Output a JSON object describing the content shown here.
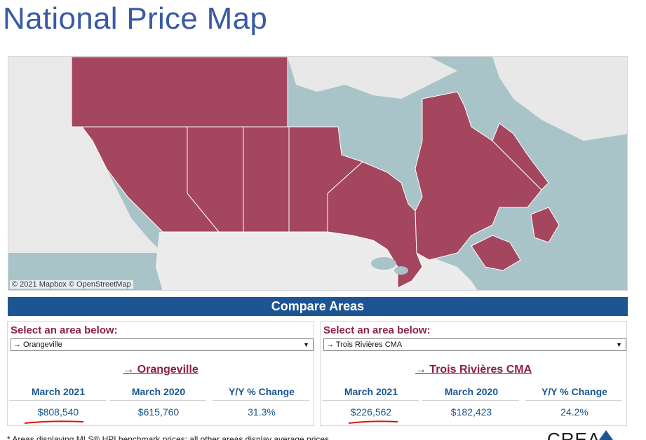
{
  "page": {
    "title": "National Price Map"
  },
  "map": {
    "attribution": "© 2021 Mapbox © OpenStreetMap"
  },
  "compare": {
    "title": "Compare Areas"
  },
  "panels": [
    {
      "select_label": "Select an area below:",
      "selected": "→ Orangeville",
      "area_name": "→ Orangeville",
      "headers": [
        "March 2021",
        "March 2020",
        "Y/Y % Change"
      ],
      "values": [
        "$808,540",
        "$615,760",
        "31.3%"
      ]
    },
    {
      "select_label": "Select an area below:",
      "selected": "→ Trois Rivières CMA",
      "area_name": "→ Trois Rivières CMA",
      "headers": [
        "March 2021",
        "March 2020",
        "Y/Y % Change"
      ],
      "values": [
        "$226,562",
        "$182,423",
        "24.2%"
      ]
    }
  ],
  "footnote": "* Areas displaying MLS® HPI benchmark prices; all other areas display average prices",
  "logo": {
    "text": "CREA"
  },
  "colors": {
    "title": "#3a5ba4",
    "bar": "#1c5592",
    "accent": "#8e1f3f",
    "region": "#a3465e",
    "water": "#a9c4c9",
    "land": "#ececec"
  }
}
